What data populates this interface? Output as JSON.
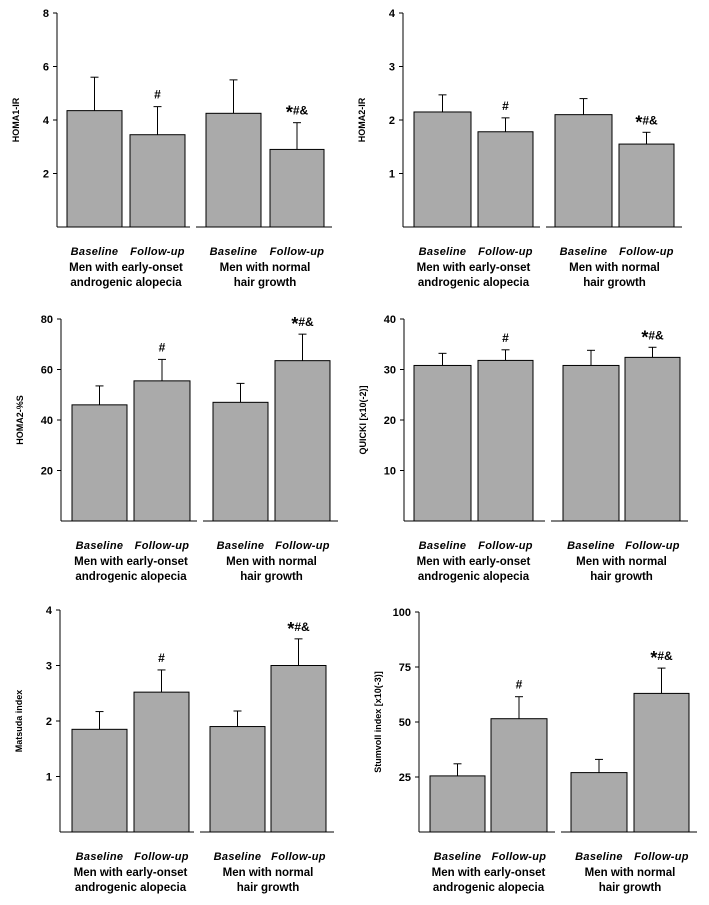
{
  "chart_data": [
    {
      "type": "bar",
      "ylabel": "HOMA1-IR",
      "ylim": [
        0,
        8
      ],
      "yticks": [
        "2",
        "4",
        "6",
        "8"
      ],
      "categories": [
        "Baseline",
        "Follow-up",
        "Baseline",
        "Follow-up"
      ],
      "groups": [
        "Men with early-onset androgenic alopecia",
        "Men with normal hair growth"
      ],
      "values": [
        4.35,
        3.45,
        4.25,
        2.9
      ],
      "errors": [
        1.25,
        1.05,
        1.25,
        1.0
      ],
      "annotations": [
        "",
        "#",
        "",
        "*#&"
      ],
      "bar_color": "#aaaaaa"
    },
    {
      "type": "bar",
      "ylabel": "HOMA2-IR",
      "ylim": [
        0,
        4
      ],
      "yticks": [
        "1",
        "2",
        "3",
        "4"
      ],
      "categories": [
        "Baseline",
        "Follow-up",
        "Baseline",
        "Follow-up"
      ],
      "groups": [
        "Men with early-onset androgenic alopecia",
        "Men with normal hair growth"
      ],
      "values": [
        2.15,
        1.78,
        2.1,
        1.55
      ],
      "errors": [
        0.32,
        0.26,
        0.3,
        0.22
      ],
      "annotations": [
        "",
        "#",
        "",
        "*#&"
      ],
      "bar_color": "#aaaaaa"
    },
    {
      "type": "bar",
      "ylabel": "HOMA2-%S",
      "ylim": [
        0,
        80
      ],
      "yticks": [
        "20",
        "40",
        "60",
        "80"
      ],
      "categories": [
        "Baseline",
        "Follow-up",
        "Baseline",
        "Follow-up"
      ],
      "groups": [
        "Men with early-onset androgenic alopecia",
        "Men with normal hair growth"
      ],
      "values": [
        46,
        55.5,
        47,
        63.5
      ],
      "errors": [
        7.5,
        8.5,
        7.5,
        10.5
      ],
      "annotations": [
        "",
        "#",
        "",
        "*#&"
      ],
      "bar_color": "#aaaaaa"
    },
    {
      "type": "bar",
      "ylabel": "QUICKI [x10(-2)]",
      "ylim": [
        0,
        40
      ],
      "yticks": [
        "10",
        "20",
        "30",
        "40"
      ],
      "categories": [
        "Baseline",
        "Follow-up",
        "Baseline",
        "Follow-up"
      ],
      "groups": [
        "Men with early-onset androgenic alopecia",
        "Men with normal hair growth"
      ],
      "values": [
        30.8,
        31.8,
        30.8,
        32.4
      ],
      "errors": [
        2.4,
        2.1,
        3.0,
        2.0
      ],
      "annotations": [
        "",
        "#",
        "",
        "*#&"
      ],
      "bar_color": "#aaaaaa"
    },
    {
      "type": "bar",
      "ylabel": "Matsuda index",
      "ylim": [
        0,
        4
      ],
      "yticks": [
        "1",
        "2",
        "3",
        "4"
      ],
      "categories": [
        "Baseline",
        "Follow-up",
        "Baseline",
        "Follow-up"
      ],
      "groups": [
        "Men with early-onset androgenic alopecia",
        "Men with normal hair growth"
      ],
      "values": [
        1.85,
        2.52,
        1.9,
        3.0
      ],
      "errors": [
        0.32,
        0.4,
        0.28,
        0.48
      ],
      "annotations": [
        "",
        "#",
        "",
        "*#&"
      ],
      "bar_color": "#aaaaaa"
    },
    {
      "type": "bar",
      "ylabel": "Stumvoll index [x10(-3)]",
      "ylim": [
        0,
        100
      ],
      "yticks": [
        "25",
        "50",
        "75",
        "100"
      ],
      "categories": [
        "Baseline",
        "Follow-up",
        "Baseline",
        "Follow-up"
      ],
      "groups": [
        "Men with early-onset androgenic alopecia",
        "Men with normal hair growth"
      ],
      "values": [
        25.5,
        51.5,
        27,
        63
      ],
      "errors": [
        5.5,
        10,
        6,
        11.5
      ],
      "annotations": [
        "",
        "#",
        "",
        "*#&"
      ],
      "bar_color": "#aaaaaa"
    }
  ]
}
